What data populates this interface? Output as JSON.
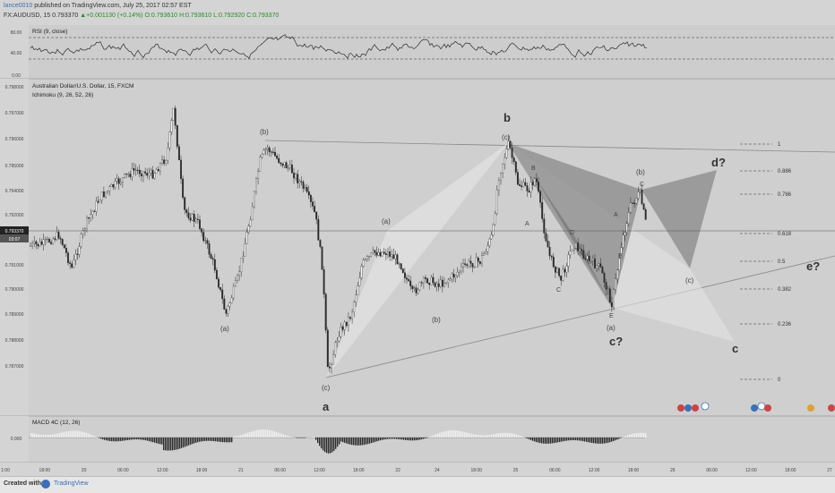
{
  "header": {
    "author": "lance0010",
    "published": "published on TradingView.com, July 25, 2017 02:57 EST",
    "symbol": "FX:AUDUSD, 15",
    "price": "0.793370",
    "change": "+0.001130 (+0.14%)",
    "ohlc": "O:0.793610 H:0.793610 L:0.792920 C:0.793370"
  },
  "rsi": {
    "label": "RSI (9, close)",
    "ticks": [
      "80.00",
      "40.00",
      "0.00"
    ]
  },
  "main": {
    "title": "Australian Dollar/U.S. Dollar, 15, FXCM",
    "indicator": "Ichimoku (9, 26, 52, 26)",
    "price_ticks": [
      "0.798000",
      "0.797000",
      "0.796000",
      "0.795000",
      "0.794000",
      "0.792000",
      "0.791000",
      "0.790000",
      "0.789000",
      "0.788000",
      "0.787000"
    ],
    "current_price": "0.793370",
    "countdown": "03:07",
    "fib_levels": [
      "1",
      "0.886",
      "0.786",
      "0.618",
      "0.5",
      "0.382",
      "0.236",
      "0"
    ],
    "wave_labels": {
      "b_paren_left": "(b)",
      "a_paren_low": "(a)",
      "c_paren_low": "(c)",
      "a_big": "a",
      "a_paren_mid": "(a)",
      "b_paren_mid": "(b)",
      "c_paren_top": "(c)",
      "b_big": "b",
      "pat_b": "B",
      "pat_a": "A",
      "pat_c": "C",
      "pat_d": "D",
      "pat_e": "E",
      "pat_a2": "A",
      "pat_b2": "B",
      "pat_c2": "C",
      "b_paren_right": "(b)",
      "a_paren_right": "(a)",
      "c_big_q": "c?",
      "c_paren_right": "(c)",
      "d_q": "d?",
      "e_q": "e?",
      "c_big": "c"
    }
  },
  "macd": {
    "label": "MACD 4C (12, 26)",
    "tick": "0.000"
  },
  "time_axis": [
    "1:00",
    "18:00",
    "20",
    "06:00",
    "12:00",
    "18:00",
    "21",
    "06:00",
    "12:00",
    "18:00",
    "22",
    "24",
    "18:00",
    "25",
    "06:00",
    "12:00",
    "18:00",
    "26",
    "06:00",
    "12:00",
    "18:00",
    "27"
  ],
  "footer": {
    "created": "Created with",
    "brand": "TradingView"
  },
  "colors": {
    "background": "#cfcfcf",
    "candle": "#2b2b2b",
    "pattern_dark": "#8c8c8c",
    "pattern_light": "#e4e4e4",
    "link": "#3b6fb6",
    "up": "#2a8a2a"
  }
}
